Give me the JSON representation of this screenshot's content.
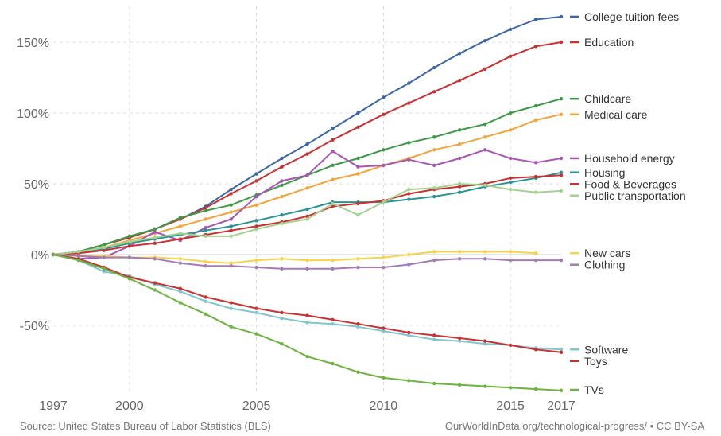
{
  "chart_data": {
    "type": "line",
    "title": "",
    "xlabel": "",
    "ylabel": "",
    "x": [
      1997,
      1998,
      1999,
      2000,
      2001,
      2002,
      2003,
      2004,
      2005,
      2006,
      2007,
      2008,
      2009,
      2010,
      2011,
      2012,
      2013,
      2014,
      2015,
      2016,
      2017
    ],
    "xlim": [
      1997,
      2017
    ],
    "ylim": [
      -100,
      170
    ],
    "x_ticks": [
      {
        "value": 1997,
        "label": "1997"
      },
      {
        "value": 2000,
        "label": "2000"
      },
      {
        "value": 2005,
        "label": "2005"
      },
      {
        "value": 2010,
        "label": "2010"
      },
      {
        "value": 2015,
        "label": "2015"
      },
      {
        "value": 2017,
        "label": "2017"
      }
    ],
    "y_ticks": [
      {
        "value": 150,
        "label": "150%"
      },
      {
        "value": 100,
        "label": "100%"
      },
      {
        "value": 50,
        "label": "50%"
      },
      {
        "value": 0,
        "label": "0%"
      },
      {
        "value": -50,
        "label": "-50%"
      }
    ],
    "grid": true,
    "legend_placement": "right",
    "series": [
      {
        "name": "College tuition fees",
        "color": "#3b67a8",
        "values": [
          0,
          2,
          7,
          12,
          18,
          25,
          34,
          46,
          57,
          68,
          78,
          89,
          100,
          111,
          121,
          132,
          142,
          151,
          159,
          166,
          168
        ]
      },
      {
        "name": "Education",
        "color": "#c83232",
        "values": [
          0,
          2,
          7,
          12,
          18,
          25,
          33,
          43,
          52,
          62,
          71,
          81,
          90,
          99,
          107,
          115,
          123,
          131,
          140,
          147,
          150
        ]
      },
      {
        "name": "Childcare",
        "color": "#3c9a46",
        "values": [
          0,
          2,
          7,
          13,
          18,
          26,
          31,
          35,
          42,
          49,
          56,
          63,
          68,
          74,
          79,
          83,
          88,
          92,
          100,
          105,
          110
        ]
      },
      {
        "name": "Medical care",
        "color": "#f2a43a",
        "values": [
          0,
          2,
          5,
          10,
          15,
          20,
          25,
          30,
          35,
          41,
          47,
          53,
          57,
          63,
          68,
          74,
          78,
          83,
          88,
          95,
          99
        ]
      },
      {
        "name": "Household energy",
        "color": "#a757b1",
        "values": [
          0,
          -3,
          -2,
          6,
          16,
          10,
          19,
          25,
          41,
          52,
          56,
          73,
          62,
          63,
          67,
          63,
          68,
          74,
          68,
          65,
          68
        ]
      },
      {
        "name": "Housing",
        "color": "#2b9393",
        "values": [
          0,
          2,
          4,
          8,
          11,
          14,
          17,
          20,
          24,
          28,
          32,
          37,
          37,
          37,
          39,
          41,
          44,
          48,
          51,
          54,
          58
        ]
      },
      {
        "name": "Food & Beverages",
        "color": "#c83232",
        "values": [
          0,
          1,
          3,
          6,
          8,
          11,
          14,
          17,
          20,
          23,
          27,
          34,
          36,
          38,
          43,
          46,
          48,
          50,
          54,
          55,
          56
        ]
      },
      {
        "name": "Public transportation",
        "color": "#a5d28f",
        "values": [
          0,
          2,
          5,
          9,
          12,
          15,
          13,
          13,
          18,
          22,
          25,
          36,
          28,
          37,
          46,
          47,
          50,
          49,
          46,
          44,
          45
        ]
      },
      {
        "name": "New cars",
        "color": "#f7d24b",
        "values": [
          0,
          -1,
          -1,
          -2,
          -2,
          -3,
          -5,
          -6,
          -4,
          -3,
          -4,
          -4,
          -3,
          -2,
          0,
          2,
          2,
          2,
          2,
          1,
          null
        ]
      },
      {
        "name": "Clothing",
        "color": "#a57bb5",
        "values": [
          0,
          -1,
          -2,
          -2,
          -3,
          -6,
          -8,
          -8,
          -9,
          -10,
          -10,
          -10,
          -9,
          -9,
          -7,
          -4,
          -3,
          -3,
          -4,
          -4,
          -4
        ]
      },
      {
        "name": "Software",
        "color": "#7fc7cf",
        "values": [
          0,
          -4,
          -12,
          -15,
          -21,
          -26,
          -33,
          -38,
          -41,
          -45,
          -48,
          -49,
          -51,
          -54,
          -57,
          -60,
          -61,
          -63,
          -64,
          -66,
          -67
        ]
      },
      {
        "name": "Toys",
        "color": "#c83232",
        "values": [
          0,
          -3,
          -9,
          -16,
          -20,
          -24,
          -30,
          -34,
          -38,
          -41,
          -43,
          -46,
          -49,
          -52,
          -55,
          -57,
          -59,
          -61,
          -64,
          -67,
          -69
        ]
      },
      {
        "name": "TVs",
        "color": "#6cb33f",
        "values": [
          0,
          -4,
          -10,
          -17,
          -25,
          -34,
          -42,
          -51,
          -56,
          -63,
          -72,
          -77,
          -83,
          -87,
          -89,
          -91,
          -92,
          -93,
          -94,
          -95,
          -96
        ]
      }
    ]
  },
  "footer": {
    "source": "Source: United States Bureau of Labor Statistics (BLS)",
    "credit": "OurWorldInData.org/technological-progress/ • CC BY-SA"
  }
}
